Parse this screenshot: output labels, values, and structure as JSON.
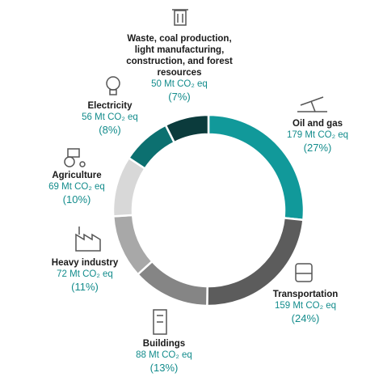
{
  "chart_data": {
    "type": "donut",
    "categories": [
      "Oil and gas",
      "Transportation",
      "Buildings",
      "Heavy industry",
      "Agriculture",
      "Electricity",
      "Waste, coal production, light manufacturing, construction, and forest resources"
    ],
    "values": [
      179,
      159,
      88,
      72,
      69,
      56,
      50
    ],
    "value_labels": [
      "179 Mt CO₂ eq",
      "159 Mt CO₂ eq",
      "88 Mt CO₂ eq",
      "72 Mt CO₂ eq",
      "69 Mt CO₂ eq",
      "56 Mt CO₂ eq",
      "50 Mt CO₂ eq"
    ],
    "share_labels": [
      "(27%)",
      "(24%)",
      "(13%)",
      "(11%)",
      "(10%)",
      "(8%)",
      "(7%)"
    ],
    "colors": [
      "#11999a",
      "#5c5c5c",
      "#858585",
      "#a8a8a8",
      "#d8d8d8",
      "#0c7070",
      "#0b3b3c"
    ]
  }
}
